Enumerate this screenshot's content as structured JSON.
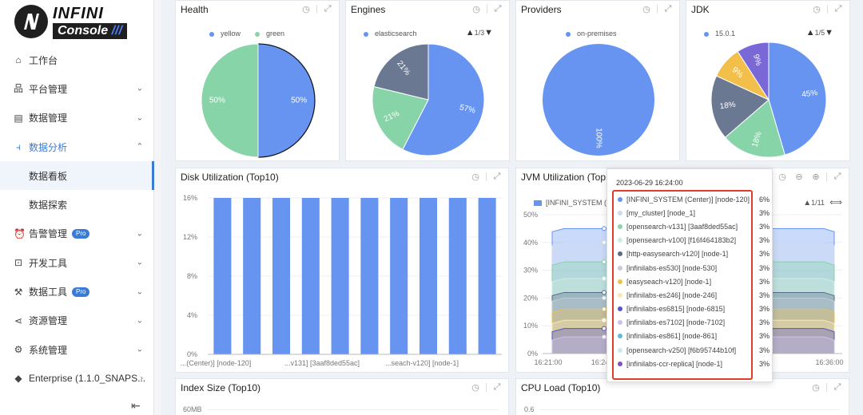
{
  "sidebar": {
    "logo_top": "INFINI",
    "logo_bottom": "Console",
    "logo_bars": "///",
    "items": [
      {
        "label": "工作台",
        "icon": "home-icon",
        "glyph": "⌂",
        "chevron": ""
      },
      {
        "label": "平台管理",
        "icon": "cluster-icon",
        "glyph": "品",
        "chevron": "⌄"
      },
      {
        "label": "数据管理",
        "icon": "database-icon",
        "glyph": "▤",
        "chevron": "⌄"
      },
      {
        "label": "数据分析",
        "icon": "chart-icon",
        "glyph": "⫞",
        "chevron": "⌃"
      },
      {
        "label": "数据看板",
        "sub": true,
        "active": true
      },
      {
        "label": "数据探索",
        "sub": true
      },
      {
        "label": "告警管理",
        "icon": "alarm-icon",
        "glyph": "⏰",
        "chevron": "⌄",
        "badge": "Pro"
      },
      {
        "label": "开发工具",
        "icon": "terminal-icon",
        "glyph": "⊡",
        "chevron": "⌄"
      },
      {
        "label": "数据工具",
        "icon": "wrench-icon",
        "glyph": "⚒",
        "chevron": "⌄",
        "badge": "Pro"
      },
      {
        "label": "资源管理",
        "icon": "share-icon",
        "glyph": "⋖",
        "chevron": "⌄"
      },
      {
        "label": "系统管理",
        "icon": "gear-icon",
        "glyph": "⚙",
        "chevron": "⌄"
      },
      {
        "label": "Enterprise (1.1.0_SNAPS...",
        "icon": "diamond-icon",
        "glyph": "◆",
        "chevron": "›"
      }
    ],
    "collapse_glyph": "⇤"
  },
  "panels": {
    "health": {
      "title": "Health"
    },
    "engines": {
      "title": "Engines",
      "pager": "1/3"
    },
    "providers": {
      "title": "Providers"
    },
    "jdk": {
      "title": "JDK",
      "pager": "1/5"
    },
    "disk": {
      "title": "Disk Utilization (Top10)"
    },
    "jvm": {
      "title": "JVM Utilization (Top10)",
      "legend": "[INFINI_SYSTEM (C",
      "pager": "1/11"
    },
    "index": {
      "title": "Index Size (Top10)",
      "y_first": "60MB"
    },
    "cpu": {
      "title": "CPU Load (Top10)",
      "y_first": "0.6"
    }
  },
  "colors": {
    "blue": "#6694f0",
    "green": "#86d4a8",
    "slate": "#6b7891",
    "yellow": "#f2c04a",
    "purple": "#7a68d6",
    "tooltip_border": "#e03c2b",
    "accent": "#3a7bd5"
  },
  "chart_data": [
    {
      "type": "pie",
      "title": "Health",
      "legend": [
        "yellow",
        "green"
      ],
      "slices": [
        {
          "label": "yellow",
          "value": 50,
          "text": "50%",
          "color": "#6694f0"
        },
        {
          "label": "green",
          "value": 50,
          "text": "50%",
          "color": "#86d4a8"
        }
      ]
    },
    {
      "type": "pie",
      "title": "Engines",
      "legend": [
        "elasticsearch"
      ],
      "slices": [
        {
          "value": 57,
          "text": "57%",
          "color": "#6694f0"
        },
        {
          "value": 21,
          "text": "21%",
          "color": "#86d4a8"
        },
        {
          "value": 21,
          "text": "21%",
          "color": "#6b7891"
        }
      ]
    },
    {
      "type": "pie",
      "title": "Providers",
      "legend": [
        "on-premises"
      ],
      "slices": [
        {
          "value": 100,
          "text": "100%",
          "color": "#6694f0"
        }
      ]
    },
    {
      "type": "pie",
      "title": "JDK",
      "legend": [
        "15.0.1"
      ],
      "slices": [
        {
          "value": 45,
          "text": "45%",
          "color": "#6694f0"
        },
        {
          "value": 18,
          "text": "18%",
          "color": "#86d4a8"
        },
        {
          "value": 18,
          "text": "18%",
          "color": "#6b7891"
        },
        {
          "value": 9,
          "text": "9%",
          "color": "#f2c04a"
        },
        {
          "value": 9,
          "text": "9%",
          "color": "#7a68d6"
        }
      ]
    },
    {
      "type": "bar",
      "title": "Disk Utilization (Top10)",
      "yticks": [
        "16%",
        "12%",
        "8%",
        "4%",
        "0%"
      ],
      "ylim": [
        0,
        16
      ],
      "values": [
        16,
        16,
        16,
        16,
        16,
        16,
        16,
        16,
        16,
        16
      ],
      "xtick_labels": [
        "...(Center)] [node-120]",
        "...v131] [3aaf8ded55ac]",
        "...seach-v120] [node-1]"
      ]
    },
    {
      "type": "area",
      "title": "JVM Utilization (Top10)",
      "yticks": [
        "50%",
        "40%",
        "30%",
        "20%",
        "10%",
        "0%"
      ],
      "xticks": [
        "16:21:00",
        "16:24",
        "16:36:00"
      ],
      "series_levels": [
        45,
        40,
        33,
        27,
        22,
        20,
        16,
        12,
        9,
        6
      ]
    }
  ],
  "tooltip": {
    "time": "2023-06-29 16:24:00",
    "rows": [
      {
        "label": "[INFINI_SYSTEM (Center)] [node-120]",
        "value": "6%",
        "color": "#6694f0"
      },
      {
        "label": "[my_cluster] [node_1]",
        "value": "3%",
        "color": "#cfd9ef"
      },
      {
        "label": "[opensearch-v131] [3aaf8ded55ac]",
        "value": "3%",
        "color": "#86d4a8"
      },
      {
        "label": "[opensearch-v100] [f16f464183b2]",
        "value": "3%",
        "color": "#cdeee0"
      },
      {
        "label": "[http-easysearch-v120] [node-1]",
        "value": "3%",
        "color": "#5b6b88"
      },
      {
        "label": "[infinilabs-es530] [node-530]",
        "value": "3%",
        "color": "#c5ccd6"
      },
      {
        "label": "[easyseach-v120] [node-1]",
        "value": "3%",
        "color": "#f2c04a"
      },
      {
        "label": "[infinilabs-es246] [node-246]",
        "value": "3%",
        "color": "#f9e7b6"
      },
      {
        "label": "[infinilabs-es6815] [node-6815]",
        "value": "3%",
        "color": "#5a52c8"
      },
      {
        "label": "[infinilabs-es7102] [node-7102]",
        "value": "3%",
        "color": "#c9c3ef"
      },
      {
        "label": "[infinilabs-es861] [node-861]",
        "value": "3%",
        "color": "#62b9d6"
      },
      {
        "label": "[opensearch-v250] [f6b95744b10f]",
        "value": "3%",
        "color": "#cbe9f1"
      },
      {
        "label": "[infinilabs-ccr-replica] [node-1]",
        "value": "3%",
        "color": "#7b52b8"
      }
    ]
  }
}
